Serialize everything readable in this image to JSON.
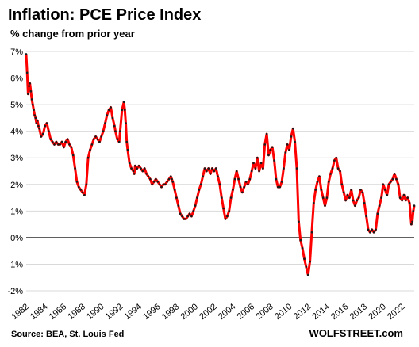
{
  "chart_data": {
    "type": "line",
    "title": "Inflation: PCE Price Index",
    "subtitle": "% change from prior year",
    "source": "Source: BEA, St. Louis Fed",
    "brand": "WOLFSTREET.com",
    "ylim": [
      -2,
      7
    ],
    "yticks": [
      "-2%",
      "-1%",
      "0%",
      "1%",
      "2%",
      "3%",
      "4%",
      "5%",
      "6%",
      "7%"
    ],
    "xlim": [
      1982,
      2023.3
    ],
    "xticks": [
      "1982",
      "1984",
      "1986",
      "1988",
      "1990",
      "1992",
      "1994",
      "1996",
      "1998",
      "2000",
      "2002",
      "2004",
      "2006",
      "2008",
      "2010",
      "2012",
      "2014",
      "2016",
      "2018",
      "2020",
      "2022"
    ],
    "grid": true,
    "colors": {
      "line": "#ff0000",
      "markers": "#1a1a1a",
      "grid": "#d9d9d9"
    },
    "series": [
      {
        "points": [
          [
            1982.0,
            6.9
          ],
          [
            1982.1,
            6.2
          ],
          [
            1982.2,
            5.4
          ],
          [
            1982.3,
            5.7
          ],
          [
            1982.4,
            5.8
          ],
          [
            1982.5,
            5.5
          ],
          [
            1982.6,
            5.2
          ],
          [
            1982.7,
            5.0
          ],
          [
            1982.8,
            4.8
          ],
          [
            1982.9,
            4.6
          ],
          [
            1983.0,
            4.5
          ],
          [
            1983.1,
            4.3
          ],
          [
            1983.2,
            4.4
          ],
          [
            1983.3,
            4.2
          ],
          [
            1983.4,
            4.1
          ],
          [
            1983.6,
            3.8
          ],
          [
            1983.8,
            3.9
          ],
          [
            1984.0,
            4.2
          ],
          [
            1984.2,
            4.3
          ],
          [
            1984.4,
            4.0
          ],
          [
            1984.6,
            3.7
          ],
          [
            1984.8,
            3.6
          ],
          [
            1985.0,
            3.5
          ],
          [
            1985.2,
            3.6
          ],
          [
            1985.4,
            3.5
          ],
          [
            1985.6,
            3.5
          ],
          [
            1985.8,
            3.6
          ],
          [
            1986.0,
            3.4
          ],
          [
            1986.2,
            3.6
          ],
          [
            1986.4,
            3.7
          ],
          [
            1986.6,
            3.5
          ],
          [
            1986.8,
            3.4
          ],
          [
            1987.0,
            3.1
          ],
          [
            1987.2,
            2.6
          ],
          [
            1987.4,
            2.1
          ],
          [
            1987.6,
            1.9
          ],
          [
            1987.8,
            1.8
          ],
          [
            1988.0,
            1.7
          ],
          [
            1988.2,
            1.6
          ],
          [
            1988.4,
            2.0
          ],
          [
            1988.6,
            3.0
          ],
          [
            1988.8,
            3.3
          ],
          [
            1989.0,
            3.5
          ],
          [
            1989.2,
            3.7
          ],
          [
            1989.4,
            3.8
          ],
          [
            1989.6,
            3.7
          ],
          [
            1989.8,
            3.6
          ],
          [
            1990.0,
            3.8
          ],
          [
            1990.2,
            4.0
          ],
          [
            1990.4,
            4.3
          ],
          [
            1990.6,
            4.6
          ],
          [
            1990.8,
            4.8
          ],
          [
            1991.0,
            4.9
          ],
          [
            1991.2,
            4.5
          ],
          [
            1991.4,
            4.2
          ],
          [
            1991.5,
            4.0
          ],
          [
            1991.7,
            3.7
          ],
          [
            1991.9,
            3.6
          ],
          [
            1992.0,
            4.0
          ],
          [
            1992.2,
            4.8
          ],
          [
            1992.4,
            5.1
          ],
          [
            1992.5,
            4.8
          ],
          [
            1992.6,
            4.3
          ],
          [
            1992.7,
            3.6
          ],
          [
            1992.8,
            3.3
          ],
          [
            1993.0,
            2.8
          ],
          [
            1993.2,
            2.6
          ],
          [
            1993.4,
            2.5
          ],
          [
            1993.5,
            2.4
          ],
          [
            1993.6,
            2.7
          ],
          [
            1993.8,
            2.6
          ],
          [
            1994.0,
            2.7
          ],
          [
            1994.2,
            2.6
          ],
          [
            1994.4,
            2.5
          ],
          [
            1994.6,
            2.6
          ],
          [
            1994.8,
            2.4
          ],
          [
            1995.0,
            2.3
          ],
          [
            1995.2,
            2.2
          ],
          [
            1995.4,
            2.0
          ],
          [
            1995.6,
            2.1
          ],
          [
            1995.8,
            2.2
          ],
          [
            1996.0,
            2.1
          ],
          [
            1996.2,
            2.0
          ],
          [
            1996.4,
            1.9
          ],
          [
            1996.6,
            2.0
          ],
          [
            1996.8,
            2.0
          ],
          [
            1997.0,
            2.1
          ],
          [
            1997.2,
            2.2
          ],
          [
            1997.4,
            2.3
          ],
          [
            1997.5,
            2.2
          ],
          [
            1997.6,
            2.1
          ],
          [
            1997.8,
            1.8
          ],
          [
            1998.0,
            1.5
          ],
          [
            1998.2,
            1.2
          ],
          [
            1998.4,
            0.9
          ],
          [
            1998.6,
            0.8
          ],
          [
            1998.8,
            0.7
          ],
          [
            1999.0,
            0.7
          ],
          [
            1999.2,
            0.8
          ],
          [
            1999.4,
            0.9
          ],
          [
            1999.6,
            0.8
          ],
          [
            1999.8,
            1.0
          ],
          [
            2000.0,
            1.2
          ],
          [
            2000.2,
            1.5
          ],
          [
            2000.4,
            1.8
          ],
          [
            2000.6,
            2.0
          ],
          [
            2000.8,
            2.3
          ],
          [
            2001.0,
            2.6
          ],
          [
            2001.2,
            2.5
          ],
          [
            2001.4,
            2.6
          ],
          [
            2001.6,
            2.4
          ],
          [
            2001.8,
            2.6
          ],
          [
            2002.0,
            2.5
          ],
          [
            2002.2,
            2.6
          ],
          [
            2002.4,
            2.3
          ],
          [
            2002.6,
            2.0
          ],
          [
            2002.8,
            1.5
          ],
          [
            2003.0,
            1.1
          ],
          [
            2003.2,
            0.7
          ],
          [
            2003.4,
            0.8
          ],
          [
            2003.6,
            1.0
          ],
          [
            2003.8,
            1.5
          ],
          [
            2004.0,
            1.8
          ],
          [
            2004.2,
            2.2
          ],
          [
            2004.4,
            2.5
          ],
          [
            2004.6,
            2.2
          ],
          [
            2004.8,
            1.9
          ],
          [
            2005.0,
            1.7
          ],
          [
            2005.2,
            1.9
          ],
          [
            2005.4,
            2.1
          ],
          [
            2005.6,
            2.0
          ],
          [
            2005.8,
            2.2
          ],
          [
            2006.0,
            2.5
          ],
          [
            2006.2,
            2.8
          ],
          [
            2006.4,
            2.6
          ],
          [
            2006.6,
            3.0
          ],
          [
            2006.8,
            2.5
          ],
          [
            2007.0,
            2.8
          ],
          [
            2007.2,
            2.6
          ],
          [
            2007.4,
            3.5
          ],
          [
            2007.6,
            3.9
          ],
          [
            2007.8,
            3.1
          ],
          [
            2008.0,
            3.3
          ],
          [
            2008.2,
            3.4
          ],
          [
            2008.4,
            2.9
          ],
          [
            2008.6,
            2.2
          ],
          [
            2008.8,
            1.9
          ],
          [
            2009.0,
            1.9
          ],
          [
            2009.2,
            2.1
          ],
          [
            2009.4,
            2.6
          ],
          [
            2009.6,
            3.2
          ],
          [
            2009.8,
            3.5
          ],
          [
            2010.0,
            3.3
          ],
          [
            2010.2,
            3.8
          ],
          [
            2010.4,
            4.1
          ],
          [
            2010.6,
            3.6
          ],
          [
            2010.8,
            2.6
          ],
          [
            2011.0,
            0.6
          ],
          [
            2011.2,
            -0.1
          ],
          [
            2011.4,
            -0.4
          ],
          [
            2011.6,
            -0.8
          ],
          [
            2011.8,
            -1.1
          ],
          [
            2012.0,
            -1.4
          ],
          [
            2012.2,
            -0.9
          ],
          [
            2012.4,
            0.2
          ],
          [
            2012.6,
            1.3
          ],
          [
            2012.8,
            1.8
          ],
          [
            2013.0,
            2.1
          ],
          [
            2013.2,
            2.3
          ],
          [
            2013.4,
            1.8
          ],
          [
            2013.6,
            1.5
          ],
          [
            2013.8,
            1.2
          ],
          [
            2014.0,
            1.5
          ],
          [
            2014.2,
            2.1
          ],
          [
            2014.4,
            2.4
          ],
          [
            2014.6,
            2.6
          ],
          [
            2014.8,
            2.9
          ],
          [
            2015.0,
            3.0
          ],
          [
            2015.2,
            2.6
          ],
          [
            2015.4,
            2.5
          ],
          [
            2015.6,
            2.0
          ],
          [
            2015.8,
            1.7
          ],
          [
            2016.0,
            1.4
          ],
          [
            2016.2,
            1.6
          ],
          [
            2016.4,
            1.5
          ],
          [
            2016.6,
            1.8
          ],
          [
            2016.8,
            1.4
          ],
          [
            2017.0,
            1.2
          ],
          [
            2017.2,
            1.4
          ],
          [
            2017.4,
            1.5
          ],
          [
            2017.6,
            1.8
          ],
          [
            2017.8,
            1.7
          ],
          [
            2018.0,
            1.3
          ],
          [
            2018.2,
            0.8
          ],
          [
            2018.4,
            0.3
          ],
          [
            2018.6,
            0.2
          ],
          [
            2018.8,
            0.3
          ],
          [
            2019.0,
            0.2
          ],
          [
            2019.2,
            0.3
          ],
          [
            2019.4,
            0.9
          ],
          [
            2019.6,
            1.2
          ],
          [
            2019.8,
            1.5
          ],
          [
            2020.0,
            2.0
          ],
          [
            2020.2,
            1.8
          ],
          [
            2020.4,
            1.6
          ],
          [
            2020.6,
            2.0
          ],
          [
            2020.8,
            2.1
          ],
          [
            2021.0,
            2.2
          ],
          [
            2021.2,
            2.4
          ],
          [
            2021.4,
            2.2
          ],
          [
            2021.6,
            2.0
          ],
          [
            2021.8,
            1.5
          ],
          [
            2022.0,
            1.4
          ],
          [
            2022.2,
            1.6
          ],
          [
            2022.4,
            1.4
          ],
          [
            2022.6,
            1.5
          ],
          [
            2022.8,
            1.3
          ],
          [
            2023.0,
            0.5
          ],
          [
            2023.1,
            0.6
          ],
          [
            2023.2,
            1.0
          ],
          [
            2023.3,
            1.2
          ]
        ]
      }
    ]
  }
}
